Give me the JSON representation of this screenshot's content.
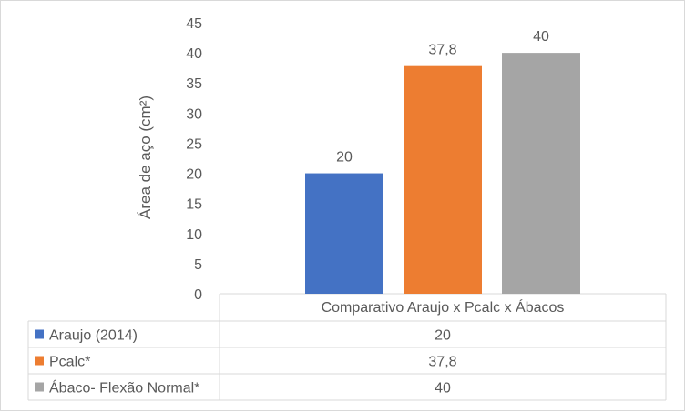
{
  "chart_data": {
    "type": "bar",
    "title": "",
    "ylabel": "Área de aço (cm²)",
    "xlabel": "",
    "category_label": "Comparativo Araujo x Pcalc x Ábacos",
    "ylim": [
      0,
      45
    ],
    "yticks": [
      0,
      5,
      10,
      15,
      20,
      25,
      30,
      35,
      40,
      45
    ],
    "grid": false,
    "legend_placement": "data-table",
    "series": [
      {
        "name": "Araujo (2014)",
        "value": 20,
        "label": "20",
        "color": "#4472c4"
      },
      {
        "name": "Pcalc*",
        "value": 37.8,
        "label": "37,8",
        "color": "#ed7d31"
      },
      {
        "name": "Ábaco- Flexão Normal*",
        "value": 40,
        "label": "40",
        "color": "#a5a5a5"
      }
    ]
  }
}
